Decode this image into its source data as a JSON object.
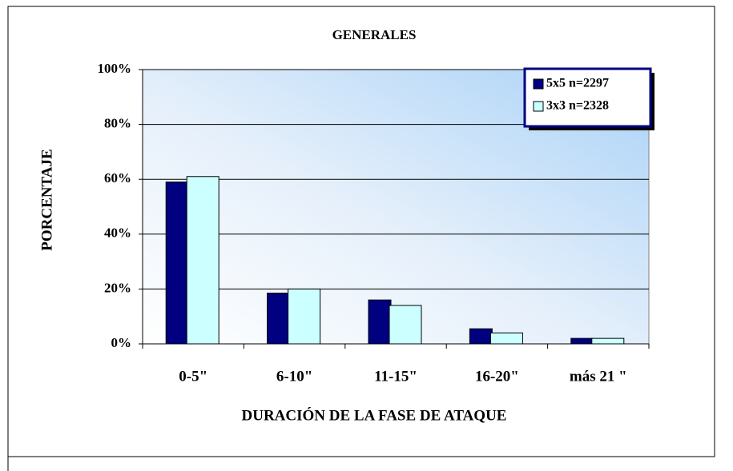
{
  "chart_data": {
    "type": "bar",
    "title": "GENERALES",
    "x_label": "DURACIÓN DE LA FASE DE ATAQUE",
    "y_label": "PORCENTAJE",
    "categories": [
      "0-5\"",
      "6-10\"",
      "11-15\"",
      "16-20\"",
      "más 21 \""
    ],
    "series": [
      {
        "name": "5x5 n=2297",
        "color": "#000080",
        "values": [
          59,
          18.5,
          16,
          5.5,
          2
        ]
      },
      {
        "name": "3x3 n=2328",
        "color": "#ccffff",
        "values": [
          61,
          20,
          14,
          4,
          2
        ]
      }
    ],
    "ylim": [
      0,
      100
    ],
    "yticks": [
      {
        "value": 0,
        "label": "0%"
      },
      {
        "value": 20,
        "label": "20%"
      },
      {
        "value": 40,
        "label": "40%"
      },
      {
        "value": 60,
        "label": "60%"
      },
      {
        "value": 80,
        "label": "80%"
      },
      {
        "value": 100,
        "label": "100%"
      }
    ],
    "grid": true,
    "legend": "top-right"
  }
}
